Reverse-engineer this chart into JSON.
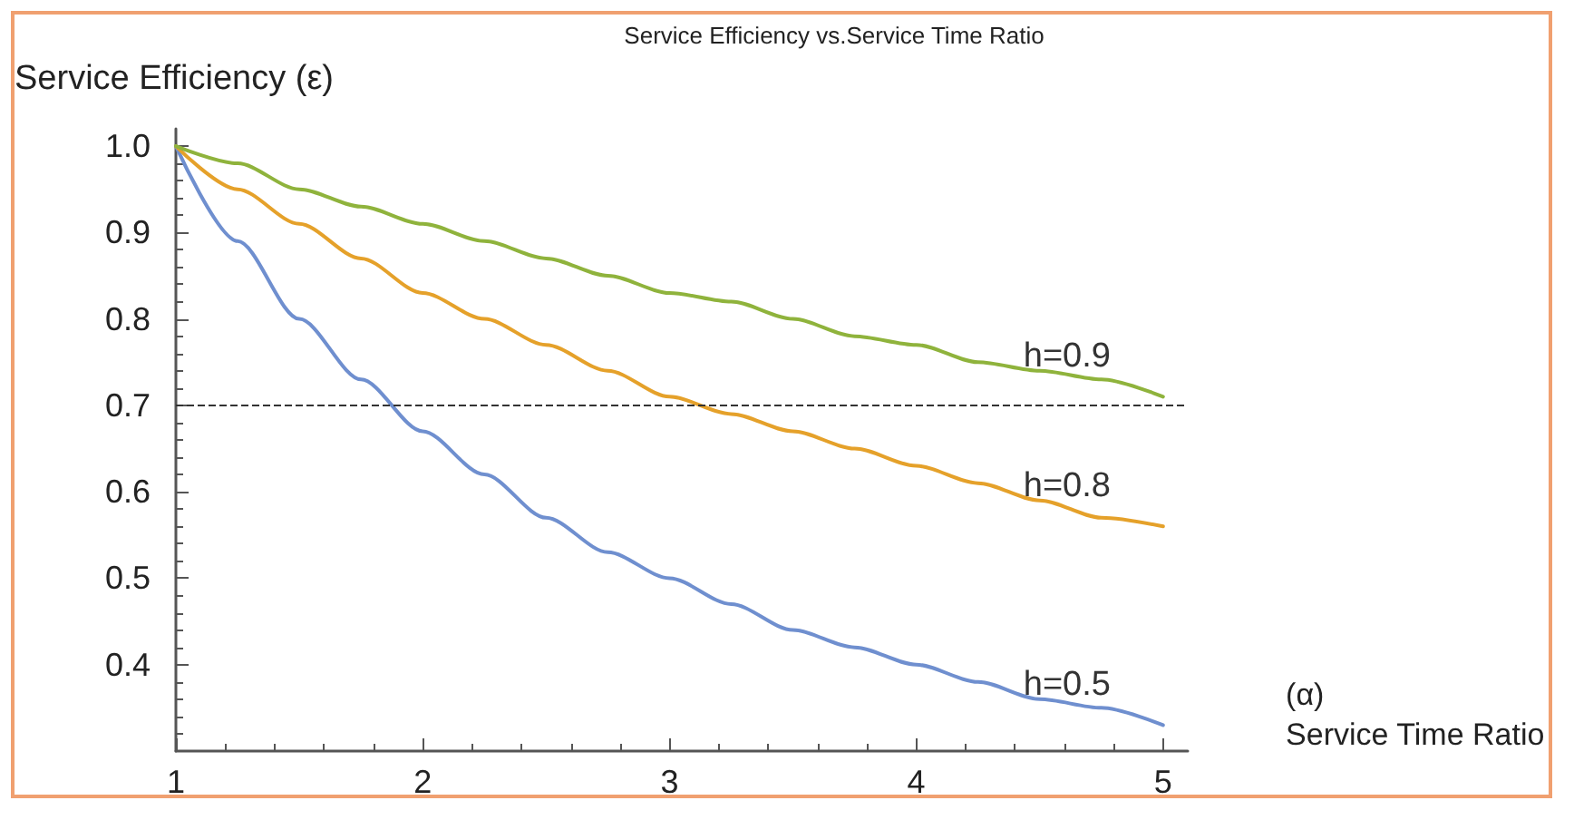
{
  "chart_data": {
    "type": "line",
    "title": "Service Efficiency vs.Service Time Ratio",
    "xlabel": "(α)\nService Time Ratio",
    "ylabel": "Service Efficiency (ε)",
    "x": [
      1,
      1.25,
      1.5,
      1.75,
      2,
      2.25,
      2.5,
      2.75,
      3,
      3.25,
      3.5,
      3.75,
      4,
      4.25,
      4.5,
      4.75,
      5
    ],
    "series": [
      {
        "name": "h=0.5",
        "color": "#6f8fcf",
        "values": [
          1,
          0.89,
          0.8,
          0.73,
          0.67,
          0.62,
          0.57,
          0.53,
          0.5,
          0.47,
          0.44,
          0.42,
          0.4,
          0.38,
          0.36,
          0.35,
          0.33
        ]
      },
      {
        "name": "h=0.8",
        "color": "#e5a12a",
        "values": [
          1,
          0.95,
          0.91,
          0.87,
          0.83,
          0.8,
          0.77,
          0.74,
          0.71,
          0.69,
          0.67,
          0.65,
          0.63,
          0.61,
          0.59,
          0.57,
          0.56
        ]
      },
      {
        "name": "h=0.9",
        "color": "#8fb33c",
        "values": [
          1,
          0.98,
          0.95,
          0.93,
          0.91,
          0.89,
          0.87,
          0.85,
          0.83,
          0.82,
          0.8,
          0.78,
          0.77,
          0.75,
          0.74,
          0.73,
          0.71
        ]
      }
    ],
    "xlim": [
      1,
      5.1
    ],
    "xticks": [
      1,
      2,
      3,
      4,
      5
    ],
    "ylim": [
      0.3,
      1.02
    ],
    "yticks": [
      0.4,
      0.5,
      0.6,
      0.7,
      0.8,
      0.9,
      {
        "value": 1,
        "label": "1.0"
      }
    ],
    "ref_lines": [
      {
        "axis": "y",
        "value": 0.7,
        "color": "#333333",
        "line_style": "dashed"
      }
    ],
    "grid": false,
    "legend": false,
    "marker": "none",
    "line_style": "solid"
  }
}
